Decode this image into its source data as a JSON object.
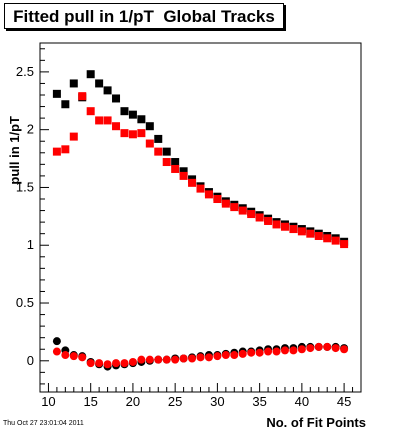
{
  "chart_data": {
    "type": "scatter",
    "title": "Fitted pull in 1/pT  Global Tracks",
    "xlabel": "No. of Fit Points",
    "ylabel": "pull in 1/pT",
    "xlim": [
      9,
      47
    ],
    "ylim": [
      -0.27,
      2.75
    ],
    "xticks": [
      10,
      15,
      20,
      25,
      30,
      35,
      40,
      45
    ],
    "yticks": [
      0,
      0.5,
      1,
      1.5,
      2,
      2.5
    ],
    "x": [
      11,
      12,
      13,
      14,
      15,
      16,
      17,
      18,
      19,
      20,
      21,
      22,
      23,
      24,
      25,
      26,
      27,
      28,
      29,
      30,
      31,
      32,
      33,
      34,
      35,
      36,
      37,
      38,
      39,
      40,
      41,
      42,
      43,
      44,
      45
    ],
    "series": [
      {
        "color": "#000000",
        "marker": "square",
        "values": [
          2.31,
          2.22,
          2.4,
          2.28,
          2.48,
          2.4,
          2.34,
          2.27,
          2.16,
          2.13,
          2.09,
          2.03,
          1.92,
          1.81,
          1.72,
          1.64,
          1.57,
          1.51,
          1.46,
          1.42,
          1.38,
          1.35,
          1.32,
          1.29,
          1.26,
          1.23,
          1.2,
          1.18,
          1.16,
          1.14,
          1.12,
          1.1,
          1.08,
          1.06,
          1.03
        ]
      },
      {
        "color": "#ff0000",
        "marker": "square",
        "values": [
          1.81,
          1.83,
          1.94,
          2.29,
          2.16,
          2.08,
          2.08,
          2.03,
          1.97,
          1.96,
          1.97,
          1.88,
          1.81,
          1.72,
          1.66,
          1.6,
          1.54,
          1.49,
          1.44,
          1.4,
          1.36,
          1.33,
          1.3,
          1.27,
          1.24,
          1.21,
          1.18,
          1.16,
          1.14,
          1.12,
          1.1,
          1.08,
          1.06,
          1.04,
          1.01
        ]
      },
      {
        "color": "#000000",
        "marker": "circle",
        "values": [
          0.17,
          0.09,
          0.05,
          0.04,
          -0.01,
          -0.03,
          -0.05,
          -0.04,
          -0.03,
          -0.02,
          -0.01,
          0.0,
          0.01,
          0.01,
          0.02,
          0.02,
          0.03,
          0.04,
          0.05,
          0.05,
          0.06,
          0.07,
          0.08,
          0.08,
          0.09,
          0.1,
          0.1,
          0.11,
          0.11,
          0.12,
          0.12,
          0.12,
          0.12,
          0.12,
          0.11
        ]
      },
      {
        "color": "#ff0000",
        "marker": "circle",
        "values": [
          0.08,
          0.05,
          0.04,
          0.03,
          -0.02,
          -0.02,
          -0.03,
          -0.02,
          -0.02,
          -0.01,
          0.01,
          0.01,
          0.01,
          0.01,
          0.01,
          0.02,
          0.02,
          0.03,
          0.03,
          0.04,
          0.05,
          0.05,
          0.06,
          0.07,
          0.07,
          0.08,
          0.08,
          0.09,
          0.09,
          0.1,
          0.11,
          0.12,
          0.12,
          0.11,
          0.1
        ]
      }
    ]
  },
  "footer": "Thu Oct 27 23:01:04 2011"
}
